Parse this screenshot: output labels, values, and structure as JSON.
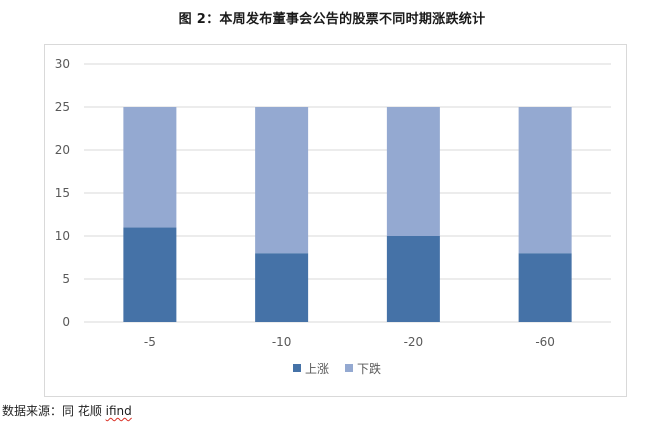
{
  "title": "图 2：本周发布董事会公告的股票不同时期涨跌统计",
  "source": {
    "prefix": "数据来源：同 花顺 ",
    "brand": "ifind"
  },
  "chart_data": {
    "type": "bar",
    "stacked": true,
    "title": "",
    "xlabel": "",
    "ylabel": "",
    "categories": [
      "-5",
      "-10",
      "-20",
      "-60"
    ],
    "series": [
      {
        "name": "上涨",
        "values": [
          11,
          8,
          10,
          8
        ],
        "color": "#4572a7"
      },
      {
        "name": "下跌",
        "values": [
          14,
          17,
          15,
          17
        ],
        "color": "#94a9d1"
      }
    ],
    "ylim": [
      0,
      30
    ],
    "yticks": [
      "0",
      "5",
      "10",
      "15",
      "20",
      "25",
      "30"
    ],
    "grid": true,
    "legend": "bottom"
  }
}
